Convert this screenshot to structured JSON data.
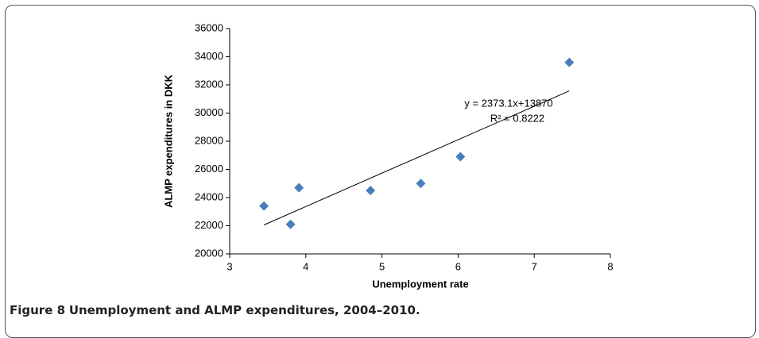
{
  "chart_data": {
    "type": "scatter",
    "x_label": "Unemployment rate",
    "y_label": "ALMP expenditures in DKK",
    "series": [
      {
        "color": "#4a7ebb",
        "x": [
          3.45,
          3.8,
          3.91,
          4.85,
          5.51,
          6.03,
          7.46
        ],
        "values": [
          23400,
          22100,
          24700,
          24500,
          25000,
          26900,
          33600
        ]
      }
    ],
    "xlim": [
      3,
      8
    ],
    "xticks": [
      3,
      4,
      5,
      6,
      7,
      8
    ],
    "ylim": [
      20000,
      36000
    ],
    "yticks": [
      20000,
      22000,
      24000,
      26000,
      28000,
      30000,
      32000,
      34000,
      36000
    ],
    "trendline": {
      "slope": 2373.1,
      "intercept": 13870,
      "equation": "y = 2373.1x+13870",
      "r2": "R² = 0.8222"
    }
  },
  "caption": {
    "label": "Figure 8",
    "text": "Unemployment and ALMP expenditures, 2004–2010."
  }
}
